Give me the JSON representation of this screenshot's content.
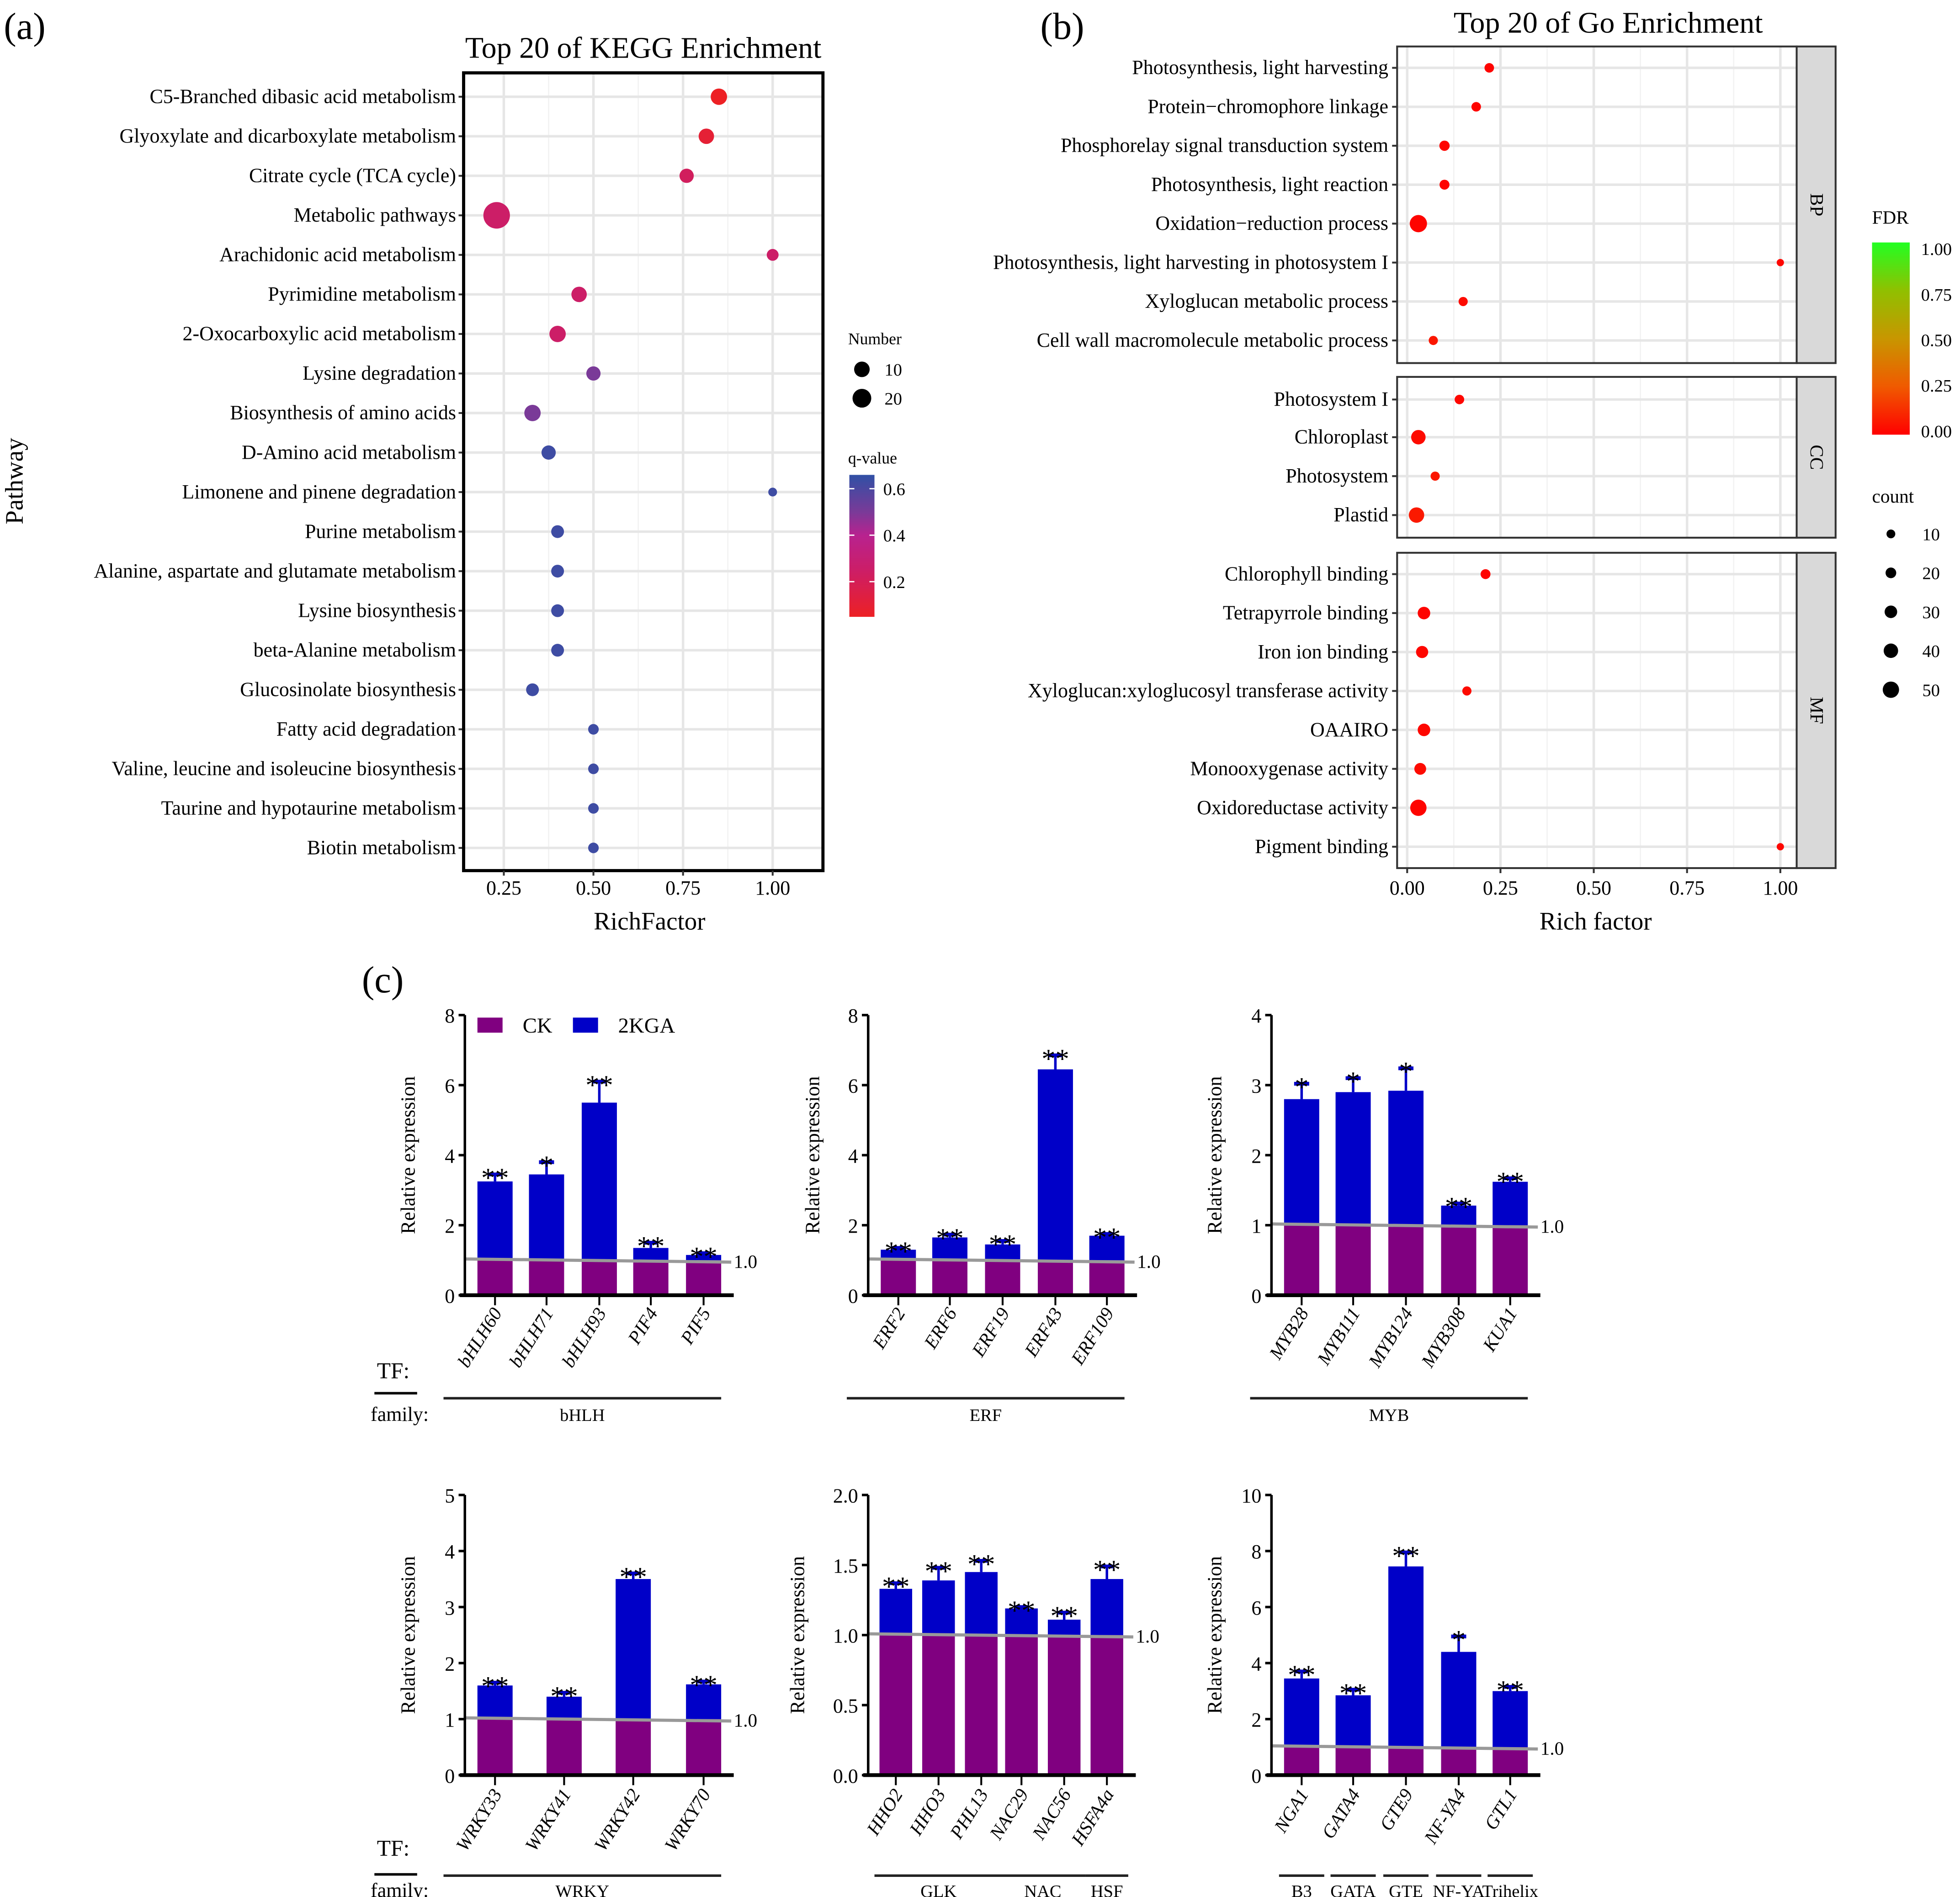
{
  "panel_labels": {
    "a": "(a)",
    "b": "(b)",
    "c": "(c)"
  },
  "shared": {
    "legend_ck": "CK",
    "legend_2kga": "2KGA",
    "ref_line_label": "1.0",
    "tf_label": "TF:",
    "family_label": "family:",
    "colors": {
      "ck": "#800080",
      "2kga": "#0000c8",
      "ref_line": "#999999"
    }
  },
  "chart_data": [
    {
      "type": "scatter",
      "title": "Top 20 of KEGG Enrichment",
      "xlabel": "RichFactor",
      "ylabel": "Pathway",
      "xticks": [
        "0.25",
        "0.50",
        "0.75",
        "1.00"
      ],
      "grid": true,
      "size_legend": {
        "title": "Number",
        "values": [
          10,
          20
        ],
        "labels": [
          "10",
          "20"
        ]
      },
      "color_legend": {
        "title": "q-value",
        "ticks": [
          "0.6",
          "0.4",
          "0.2"
        ],
        "low_color": "#ed2024",
        "high_color": "#3050a5"
      },
      "points": [
        {
          "pathway": "C5-Branched dibasic acid metabolism",
          "rich_factor": 0.85,
          "number": 10,
          "q_value": 0.05
        },
        {
          "pathway": "Glyoxylate and dicarboxylate metabolism",
          "rich_factor": 0.815,
          "number": 8,
          "q_value": 0.1
        },
        {
          "pathway": "Citrate cycle (TCA cycle)",
          "rich_factor": 0.76,
          "number": 6,
          "q_value": 0.22
        },
        {
          "pathway": "Metabolic pathways",
          "rich_factor": 0.23,
          "number": 60,
          "q_value": 0.25
        },
        {
          "pathway": "Arachidonic acid metabolism",
          "rich_factor": 1.0,
          "number": 3,
          "q_value": 0.25
        },
        {
          "pathway": "Pyrimidine metabolism",
          "rich_factor": 0.46,
          "number": 8,
          "q_value": 0.25
        },
        {
          "pathway": "2-Oxocarboxylic acid metabolism",
          "rich_factor": 0.4,
          "number": 10,
          "q_value": 0.25
        },
        {
          "pathway": "Lysine degradation",
          "rich_factor": 0.5,
          "number": 6,
          "q_value": 0.5
        },
        {
          "pathway": "Biosynthesis of amino acids",
          "rich_factor": 0.33,
          "number": 10,
          "q_value": 0.5
        },
        {
          "pathway": "D-Amino acid metabolism",
          "rich_factor": 0.375,
          "number": 6,
          "q_value": 0.63
        },
        {
          "pathway": "Limonene and pinene degradation",
          "rich_factor": 1.0,
          "number": 1,
          "q_value": 0.63
        },
        {
          "pathway": "Purine metabolism",
          "rich_factor": 0.4,
          "number": 4,
          "q_value": 0.63
        },
        {
          "pathway": "Alanine, aspartate and glutamate metabolism",
          "rich_factor": 0.4,
          "number": 4,
          "q_value": 0.63
        },
        {
          "pathway": "Lysine biosynthesis",
          "rich_factor": 0.4,
          "number": 4,
          "q_value": 0.63
        },
        {
          "pathway": "beta-Alanine metabolism",
          "rich_factor": 0.4,
          "number": 4,
          "q_value": 0.63
        },
        {
          "pathway": "Glucosinolate biosynthesis",
          "rich_factor": 0.33,
          "number": 4,
          "q_value": 0.63
        },
        {
          "pathway": "Fatty acid degradation",
          "rich_factor": 0.5,
          "number": 2,
          "q_value": 0.63
        },
        {
          "pathway": "Valine, leucine and isoleucine biosynthesis",
          "rich_factor": 0.5,
          "number": 2,
          "q_value": 0.63
        },
        {
          "pathway": "Taurine and hypotaurine metabolism",
          "rich_factor": 0.5,
          "number": 2,
          "q_value": 0.63
        },
        {
          "pathway": "Biotin metabolism",
          "rich_factor": 0.5,
          "number": 2,
          "q_value": 0.63
        }
      ]
    },
    {
      "type": "scatter",
      "title": "Top 20 of Go Enrichment",
      "xlabel": "Rich factor",
      "xticks": [
        "0.00",
        "0.25",
        "0.50",
        "0.75",
        "1.00"
      ],
      "grid": true,
      "color_legend": {
        "title": "FDR",
        "ticks": [
          "1.00",
          "0.75",
          "0.50",
          "0.25",
          "0.00"
        ],
        "low_color": "#ff0000",
        "high_color": "#22ff22"
      },
      "size_legend": {
        "title": "count",
        "values": [
          10,
          20,
          30,
          40,
          50
        ],
        "labels": [
          "10",
          "20",
          "30",
          "40",
          "50"
        ]
      },
      "facets": [
        {
          "name": "BP",
          "points": [
            {
              "term": "Photosynthesis, light harvesting",
              "rich_factor": 0.22,
              "count": 14,
              "fdr": 0.01
            },
            {
              "term": "Protein−chromophore linkage",
              "rich_factor": 0.185,
              "count": 14,
              "fdr": 0.01
            },
            {
              "term": "Phosphorelay signal transduction system",
              "rich_factor": 0.1,
              "count": 18,
              "fdr": 0.01
            },
            {
              "term": "Photosynthesis, light reaction",
              "rich_factor": 0.1,
              "count": 16,
              "fdr": 0.01
            },
            {
              "term": "Oxidation−reduction process",
              "rich_factor": 0.03,
              "count": 55,
              "fdr": 0.01
            },
            {
              "term": "Photosynthesis, light harvesting in photosystem I",
              "rich_factor": 1.0,
              "count": 2,
              "fdr": 0.02
            },
            {
              "term": "Xyloglucan metabolic process",
              "rich_factor": 0.15,
              "count": 12,
              "fdr": 0.03
            },
            {
              "term": "Cell wall macromolecule metabolic process",
              "rich_factor": 0.07,
              "count": 12,
              "fdr": 0.06
            }
          ]
        },
        {
          "name": "CC",
          "points": [
            {
              "term": "Photosystem I",
              "rich_factor": 0.14,
              "count": 14,
              "fdr": 0.02
            },
            {
              "term": "Chloroplast",
              "rich_factor": 0.03,
              "count": 40,
              "fdr": 0.03
            },
            {
              "term": "Photosystem",
              "rich_factor": 0.075,
              "count": 12,
              "fdr": 0.06
            },
            {
              "term": "Plastid",
              "rich_factor": 0.025,
              "count": 45,
              "fdr": 0.07
            }
          ]
        },
        {
          "name": "MF",
          "points": [
            {
              "term": "Chlorophyll binding",
              "rich_factor": 0.21,
              "count": 16,
              "fdr": 0.01
            },
            {
              "term": "Tetrapyrrole binding",
              "rich_factor": 0.045,
              "count": 30,
              "fdr": 0.01
            },
            {
              "term": "Iron ion binding",
              "rich_factor": 0.04,
              "count": 28,
              "fdr": 0.02
            },
            {
              "term": "Xyloglucan:xyloglucosyl transferase activity",
              "rich_factor": 0.16,
              "count": 12,
              "fdr": 0.03
            },
            {
              "term": "OAAIRO",
              "rich_factor": 0.045,
              "count": 30,
              "fdr": 0.02
            },
            {
              "term": "Monooxygenase activity",
              "rich_factor": 0.035,
              "count": 26,
              "fdr": 0.03
            },
            {
              "term": "Oxidoreductase activity",
              "rich_factor": 0.03,
              "count": 50,
              "fdr": 0.01
            },
            {
              "term": "Pigment binding",
              "rich_factor": 1.0,
              "count": 2,
              "fdr": 0.02
            }
          ]
        }
      ]
    },
    {
      "type": "bar",
      "ylabel": "Relative expression",
      "ylim": [
        0,
        8
      ],
      "yticks": [
        "0",
        "2",
        "4",
        "6",
        "8"
      ],
      "categories": [
        "bHLH60",
        "bHLH71",
        "bHLH93",
        "PIF4",
        "PIF5"
      ],
      "series": [
        {
          "name": "CK",
          "values": [
            1,
            1,
            1,
            1,
            1
          ]
        },
        {
          "name": "2KGA",
          "values": [
            3.25,
            3.45,
            5.5,
            1.35,
            1.15
          ],
          "errors": [
            0.2,
            0.35,
            0.6,
            0.15,
            0.05
          ]
        }
      ],
      "significance": [
        "**",
        "*",
        "**",
        "**",
        "**"
      ],
      "families": [
        {
          "name": "bHLH",
          "from": 0,
          "to": 4
        }
      ]
    },
    {
      "type": "bar",
      "ylabel": "Relative expression",
      "ylim": [
        0,
        8
      ],
      "yticks": [
        "0",
        "2",
        "4",
        "6",
        "8"
      ],
      "categories": [
        "ERF2",
        "ERF6",
        "ERF19",
        "ERF43",
        "ERF109"
      ],
      "series": [
        {
          "name": "CK",
          "values": [
            1,
            1,
            1,
            1,
            1
          ]
        },
        {
          "name": "2KGA",
          "values": [
            1.3,
            1.65,
            1.45,
            6.45,
            1.7
          ],
          "errors": [
            0.05,
            0.08,
            0.1,
            0.4,
            0.05
          ]
        }
      ],
      "significance": [
        "**",
        "**",
        "**",
        "**",
        "**"
      ],
      "families": [
        {
          "name": "ERF",
          "from": 0,
          "to": 4
        }
      ]
    },
    {
      "type": "bar",
      "ylabel": "Relative expression",
      "ylim": [
        0,
        4
      ],
      "yticks": [
        "0",
        "1",
        "2",
        "3",
        "4"
      ],
      "categories": [
        "MYB28",
        "MYB111",
        "MYB124",
        "MYB308",
        "KUA1"
      ],
      "series": [
        {
          "name": "CK",
          "values": [
            1,
            1,
            1,
            1,
            1
          ]
        },
        {
          "name": "2KGA",
          "values": [
            2.8,
            2.9,
            2.92,
            1.28,
            1.62
          ],
          "errors": [
            0.22,
            0.2,
            0.32,
            0.03,
            0.05
          ]
        }
      ],
      "significance": [
        "*",
        "*",
        "*",
        "**",
        "**"
      ],
      "families": [
        {
          "name": "MYB",
          "from": 0,
          "to": 4
        }
      ]
    },
    {
      "type": "bar",
      "ylabel": "Relative expression",
      "ylim": [
        0,
        5
      ],
      "yticks": [
        "0",
        "1",
        "2",
        "3",
        "4",
        "5"
      ],
      "categories": [
        "WRKY33",
        "WRKY41",
        "WRKY42",
        "WRKY70"
      ],
      "series": [
        {
          "name": "CK",
          "values": [
            1,
            1,
            1,
            1
          ]
        },
        {
          "name": "2KGA",
          "values": [
            1.6,
            1.4,
            3.5,
            1.62
          ],
          "errors": [
            0.05,
            0.07,
            0.1,
            0.05
          ]
        }
      ],
      "significance": [
        "**",
        "**",
        "**",
        "**"
      ],
      "families": [
        {
          "name": "WRKY",
          "from": 0,
          "to": 3
        }
      ]
    },
    {
      "type": "bar",
      "ylabel": "Relative expression",
      "ylim": [
        0,
        2
      ],
      "yticks": [
        "0.0",
        "0.5",
        "1.0",
        "1.5",
        "2.0"
      ],
      "categories": [
        "HHO2",
        "HHO3",
        "PHL13",
        "NAC29",
        "NAC56",
        "HSFA4a"
      ],
      "series": [
        {
          "name": "CK",
          "values": [
            1,
            1,
            1,
            1,
            1,
            1
          ]
        },
        {
          "name": "2KGA",
          "values": [
            1.33,
            1.39,
            1.45,
            1.19,
            1.11,
            1.4
          ],
          "errors": [
            0.04,
            0.09,
            0.08,
            0.01,
            0.05,
            0.09
          ]
        }
      ],
      "significance": [
        "**",
        "**",
        "**",
        "**",
        "**",
        "**"
      ],
      "families": [
        {
          "name": "GLK",
          "from": 0,
          "to": 2
        },
        {
          "name": "NAC",
          "from": 3,
          "to": 4
        },
        {
          "name": "HSF",
          "from": 5,
          "to": 5
        }
      ]
    },
    {
      "type": "bar",
      "ylabel": "Relative expression",
      "ylim": [
        0,
        10
      ],
      "yticks": [
        "0",
        "2",
        "4",
        "6",
        "8",
        "10"
      ],
      "categories": [
        "NGA1",
        "GATA4",
        "GTE9",
        "NF-YA4",
        "GTL1"
      ],
      "series": [
        {
          "name": "CK",
          "values": [
            1,
            1,
            1,
            1,
            1
          ]
        },
        {
          "name": "2KGA",
          "values": [
            3.45,
            2.85,
            7.45,
            4.4,
            3.0
          ],
          "errors": [
            0.25,
            0.2,
            0.5,
            0.55,
            0.15
          ]
        }
      ],
      "significance": [
        "**",
        "**",
        "**",
        "*",
        "**"
      ],
      "families": [
        {
          "name": "B3",
          "from": 0,
          "to": 0
        },
        {
          "name": "GATA",
          "from": 1,
          "to": 1
        },
        {
          "name": "GTE",
          "from": 2,
          "to": 2
        },
        {
          "name": "NF-YA",
          "from": 3,
          "to": 3
        },
        {
          "name": "Trihelix",
          "from": 4,
          "to": 4
        }
      ]
    }
  ]
}
